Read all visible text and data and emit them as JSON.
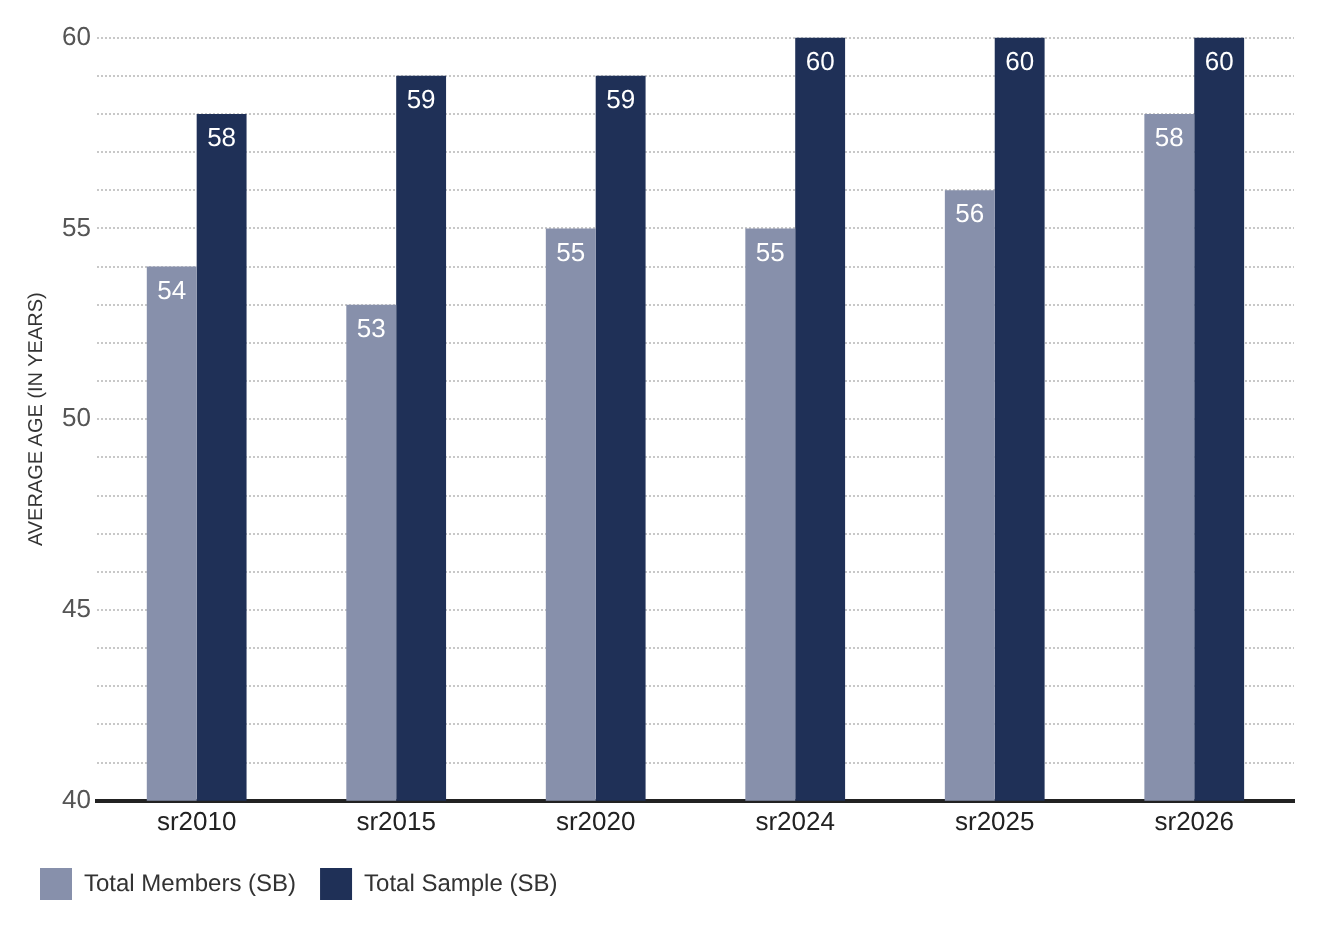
{
  "chart_data": {
    "type": "bar",
    "ylabel": "AVERAGE AGE (IN YEARS)",
    "categories": [
      "sr2010",
      "sr2015",
      "sr2020",
      "sr2024",
      "sr2025",
      "sr2026"
    ],
    "series": [
      {
        "name": "Total Members (SB)",
        "color": "#8790ab",
        "values": [
          54,
          53,
          55,
          55,
          56,
          58
        ]
      },
      {
        "name": "Total Sample (SB)",
        "color": "#1f3057",
        "values": [
          58,
          59,
          59,
          60,
          60,
          60
        ]
      }
    ],
    "ylim": [
      40,
      60
    ],
    "yticks": [
      40,
      {
        "value": 41,
        "label": null
      },
      {
        "value": 42,
        "label": null
      },
      {
        "value": 43,
        "label": null
      },
      {
        "value": 44,
        "label": null
      },
      45,
      {
        "value": 46,
        "label": null
      },
      {
        "value": 47,
        "label": null
      },
      {
        "value": 48,
        "label": null
      },
      {
        "value": 49,
        "label": null
      },
      50,
      {
        "value": 51,
        "label": null
      },
      {
        "value": 52,
        "label": null
      },
      {
        "value": 53,
        "label": null
      },
      {
        "value": 54,
        "label": null
      },
      55,
      {
        "value": 56,
        "label": null
      },
      {
        "value": 57,
        "label": null
      },
      {
        "value": 58,
        "label": null
      },
      {
        "value": 59,
        "label": null
      },
      60
    ],
    "grid": "y",
    "legend": "bottom",
    "data_labels": true
  }
}
